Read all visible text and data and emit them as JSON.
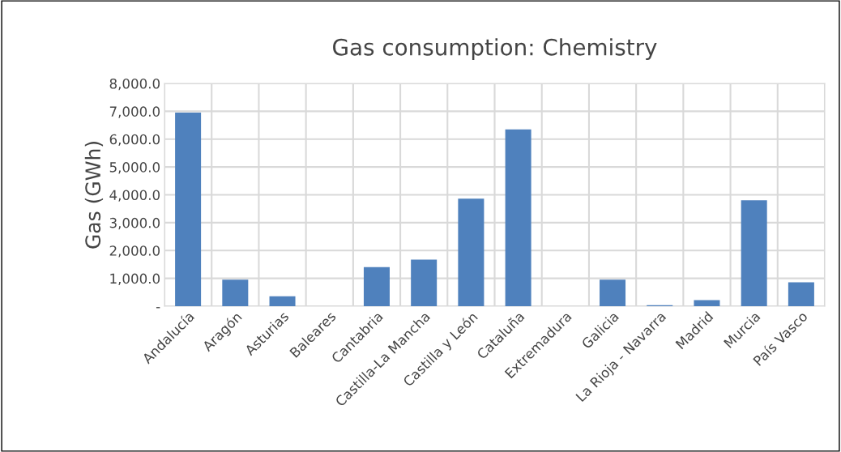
{
  "chart_data": {
    "type": "bar",
    "title": "Gas consumption: Chemistry",
    "ylabel": "Gas (GWh)",
    "categories": [
      "Andalucía",
      "Aragón",
      "Asturias",
      "Baleares",
      "Cantabria",
      "Castilla-La Mancha",
      "Castilla y León",
      "Cataluña",
      "Extremadura",
      "Galicia",
      "La Rioja - Navarra",
      "Madrid",
      "Murcia",
      "País Vasco"
    ],
    "values": [
      6950,
      950,
      360,
      0,
      1400,
      1670,
      3860,
      6350,
      0,
      950,
      40,
      220,
      3800,
      860
    ],
    "color": "#4f81bd",
    "ylim": [
      0,
      8000
    ],
    "yticks": [
      {
        "value": 0,
        "label": "-"
      },
      {
        "value": 1000,
        "label": "1,000.0"
      },
      {
        "value": 2000,
        "label": "2,000.0"
      },
      {
        "value": 3000,
        "label": "3,000.0"
      },
      {
        "value": 4000,
        "label": "4,000.0"
      },
      {
        "value": 5000,
        "label": "5,000.0"
      },
      {
        "value": 6000,
        "label": "6,000.0"
      },
      {
        "value": 7000,
        "label": "7,000.0"
      },
      {
        "value": 8000,
        "label": "8,000.0"
      }
    ],
    "grid": true
  }
}
